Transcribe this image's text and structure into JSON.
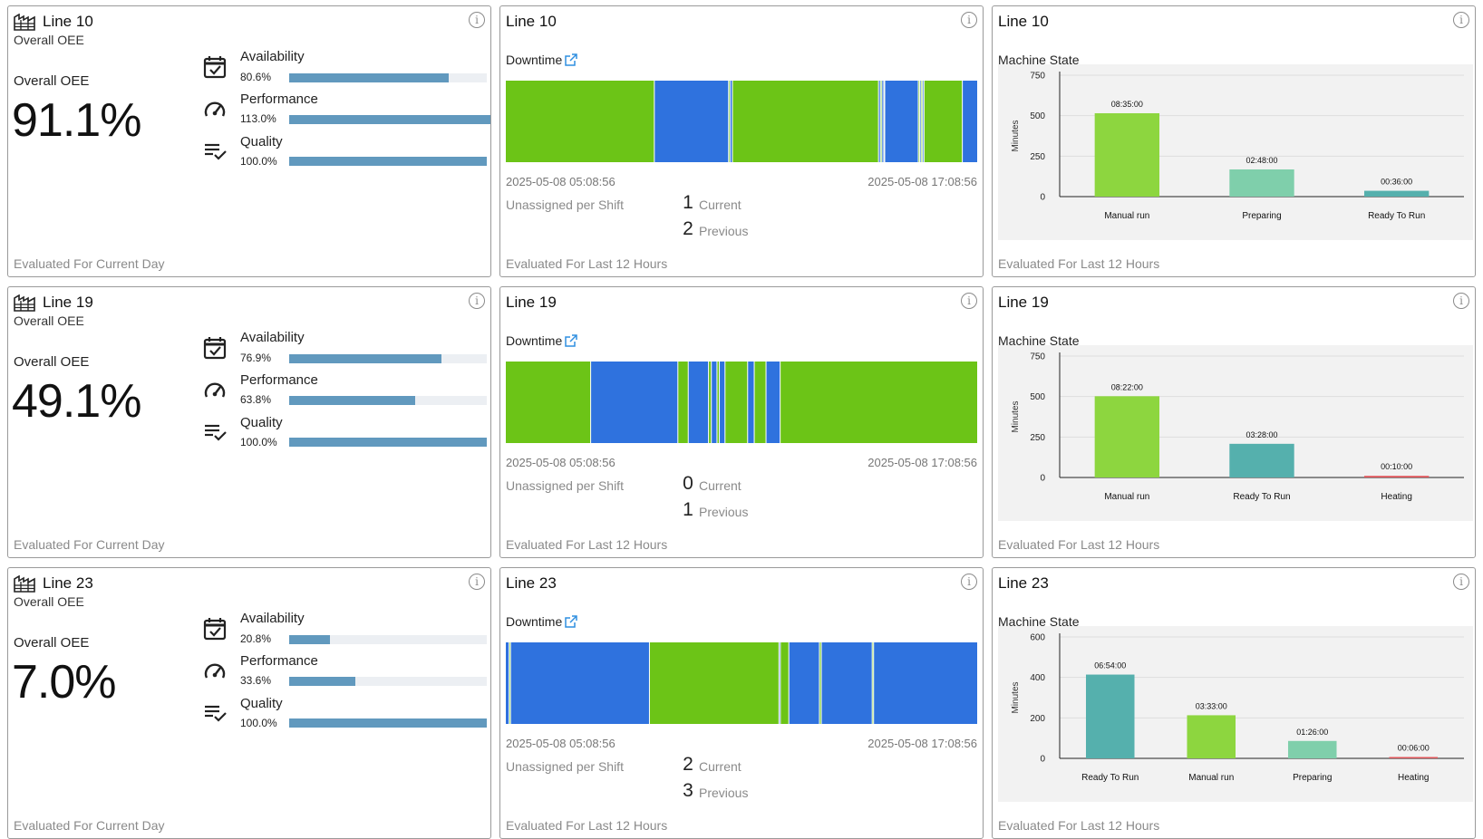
{
  "rows": [
    {
      "oee": {
        "line": "Line 10",
        "subtitle": "Overall OEE",
        "label": "Overall OEE",
        "value": "91.1%",
        "metrics": [
          {
            "name": "Availability",
            "pct": "80.6%",
            "fill": 0.806
          },
          {
            "name": "Performance",
            "pct": "113.0%",
            "fill": 1.13
          },
          {
            "name": "Quality",
            "pct": "100.0%",
            "fill": 1.0
          }
        ],
        "footer": "Evaluated For Current Day"
      },
      "downtime": {
        "line": "Line 10",
        "label": "Downtime",
        "start": "2025-05-08 05:08:56",
        "end": "2025-05-08 17:08:56",
        "unassigned_label": "Unassigned per Shift",
        "current": "1",
        "current_label": "Current",
        "previous": "2",
        "previous_label": "Previous",
        "segments": [
          {
            "state": "running",
            "fraction": 0.31
          },
          {
            "state": "down",
            "fraction": 0.155
          },
          {
            "state": "running",
            "fraction": 0.003
          },
          {
            "state": "down",
            "fraction": 0.005
          },
          {
            "state": "running",
            "fraction": 0.305
          },
          {
            "state": "down",
            "fraction": 0.004
          },
          {
            "state": "running",
            "fraction": 0.003
          },
          {
            "state": "down",
            "fraction": 0.004
          },
          {
            "state": "running",
            "fraction": 0.002
          },
          {
            "state": "down",
            "fraction": 0.07
          },
          {
            "state": "running",
            "fraction": 0.003
          },
          {
            "state": "down",
            "fraction": 0.003
          },
          {
            "state": "running",
            "fraction": 0.003
          },
          {
            "state": "down",
            "fraction": 0.003
          },
          {
            "state": "running",
            "fraction": 0.08
          },
          {
            "state": "down",
            "fraction": 0.031
          }
        ],
        "footer": "Evaluated For Last 12 Hours"
      },
      "machine_state": {
        "line": "Line 10",
        "label": "Machine State",
        "footer": "Evaluated For Last 12 Hours",
        "chart_data": {
          "type": "bar",
          "ylabel": "Minutes",
          "ylim": [
            0,
            750
          ],
          "yticks": [
            0,
            250,
            500,
            750
          ],
          "categories": [
            "Manual run",
            "Preparing",
            "Ready To Run"
          ],
          "values": [
            515,
            168,
            36
          ],
          "labels": [
            "08:35:00",
            "02:48:00",
            "00:36:00"
          ],
          "colors": [
            "#8dd63f",
            "#7fcfab",
            "#55b0ad"
          ]
        }
      }
    },
    {
      "oee": {
        "line": "Line 19",
        "subtitle": "Overall OEE",
        "label": "Overall OEE",
        "value": "49.1%",
        "metrics": [
          {
            "name": "Availability",
            "pct": "76.9%",
            "fill": 0.769
          },
          {
            "name": "Performance",
            "pct": "63.8%",
            "fill": 0.638
          },
          {
            "name": "Quality",
            "pct": "100.0%",
            "fill": 1.0
          }
        ],
        "footer": "Evaluated For Current Day"
      },
      "downtime": {
        "line": "Line 19",
        "label": "Downtime",
        "start": "2025-05-08 05:08:56",
        "end": "2025-05-08 17:08:56",
        "unassigned_label": "Unassigned per Shift",
        "current": "0",
        "current_label": "Current",
        "previous": "1",
        "previous_label": "Previous",
        "segments": [
          {
            "state": "running",
            "fraction": 0.18
          },
          {
            "state": "down",
            "fraction": 0.185
          },
          {
            "state": "running",
            "fraction": 0.022
          },
          {
            "state": "down",
            "fraction": 0.043
          },
          {
            "state": "running",
            "fraction": 0.006
          },
          {
            "state": "down",
            "fraction": 0.012
          },
          {
            "state": "running",
            "fraction": 0.005
          },
          {
            "state": "down",
            "fraction": 0.012
          },
          {
            "state": "running",
            "fraction": 0.048
          },
          {
            "state": "down",
            "fraction": 0.014
          },
          {
            "state": "running",
            "fraction": 0.025
          },
          {
            "state": "down",
            "fraction": 0.03
          },
          {
            "state": "running",
            "fraction": 0.418
          }
        ],
        "footer": "Evaluated For Last 12 Hours"
      },
      "machine_state": {
        "line": "Line 19",
        "label": "Machine State",
        "footer": "Evaluated For Last 12 Hours",
        "chart_data": {
          "type": "bar",
          "ylabel": "Minutes",
          "ylim": [
            0,
            750
          ],
          "yticks": [
            0,
            250,
            500,
            750
          ],
          "categories": [
            "Manual run",
            "Ready To Run",
            "Heating"
          ],
          "values": [
            502,
            208,
            10
          ],
          "labels": [
            "08:22:00",
            "03:28:00",
            "00:10:00"
          ],
          "colors": [
            "#8dd63f",
            "#55b0ad",
            "#e0565b"
          ]
        }
      }
    },
    {
      "oee": {
        "line": "Line 23",
        "subtitle": "Overall OEE",
        "label": "Overall OEE",
        "value": "7.0%",
        "metrics": [
          {
            "name": "Availability",
            "pct": "20.8%",
            "fill": 0.208
          },
          {
            "name": "Performance",
            "pct": "33.6%",
            "fill": 0.336
          },
          {
            "name": "Quality",
            "pct": "100.0%",
            "fill": 1.0
          }
        ],
        "footer": "Evaluated For Current Day"
      },
      "downtime": {
        "line": "Line 23",
        "label": "Downtime",
        "start": "2025-05-08 05:08:56",
        "end": "2025-05-08 17:08:56",
        "unassigned_label": "Unassigned per Shift",
        "current": "2",
        "current_label": "Current",
        "previous": "3",
        "previous_label": "Previous",
        "segments": [
          {
            "state": "down",
            "fraction": 0.007
          },
          {
            "state": "running",
            "fraction": 0.003
          },
          {
            "state": "down",
            "fraction": 0.295
          },
          {
            "state": "running",
            "fraction": 0.275
          },
          {
            "state": "down",
            "fraction": 0.003
          },
          {
            "state": "running",
            "fraction": 0.018
          },
          {
            "state": "down",
            "fraction": 0.065
          },
          {
            "state": "running",
            "fraction": 0.004
          },
          {
            "state": "down",
            "fraction": 0.108
          },
          {
            "state": "running",
            "fraction": 0.003
          },
          {
            "state": "down",
            "fraction": 0.22
          }
        ],
        "footer": "Evaluated For Last 12 Hours"
      },
      "machine_state": {
        "line": "Line 23",
        "label": "Machine State",
        "footer": "Evaluated For Last 12 Hours",
        "chart_data": {
          "type": "bar",
          "ylabel": "Minutes",
          "ylim": [
            0,
            600
          ],
          "yticks": [
            0,
            200,
            400,
            600
          ],
          "categories": [
            "Ready To Run",
            "Manual run",
            "Preparing",
            "Heating"
          ],
          "values": [
            414,
            213,
            86,
            6
          ],
          "labels": [
            "06:54:00",
            "03:33:00",
            "01:26:00",
            "00:06:00"
          ],
          "colors": [
            "#55b0ad",
            "#8dd63f",
            "#7fcfab",
            "#e0565b"
          ]
        }
      }
    }
  ],
  "colors": {
    "running": "#6cc417",
    "down": "#2f72de",
    "metric_fill": "#6199be"
  },
  "icons": [
    "factory-icon",
    "calendar-check-icon",
    "gauge-icon",
    "list-check-icon",
    "info-icon",
    "external-link-icon"
  ]
}
